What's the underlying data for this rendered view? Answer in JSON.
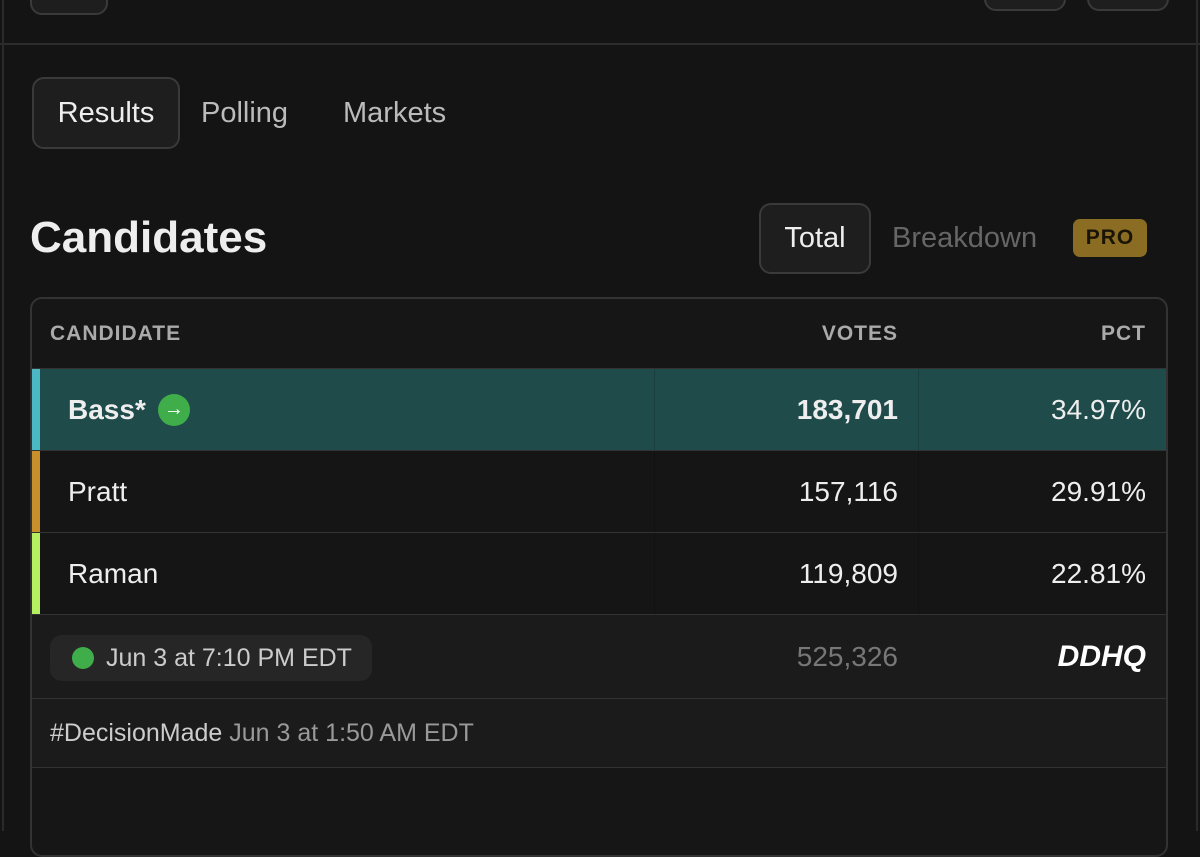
{
  "tabs": [
    "Results",
    "Polling",
    "Markets"
  ],
  "section": {
    "title": "Candidates",
    "toggle": [
      "Total",
      "Breakdown"
    ],
    "badge": "PRO"
  },
  "table": {
    "headers": [
      "CANDIDATE",
      "VOTES",
      "PCT"
    ],
    "rows": [
      [
        "Bass*",
        "183,701",
        "34.97%"
      ],
      [
        "Pratt",
        "157,116",
        "29.91%"
      ],
      [
        "Raman",
        "119,809",
        "22.81%"
      ]
    ],
    "footer": {
      "updated": "Jun 3 at 7:10 PM EDT",
      "total": "525,326",
      "source": "DDHQ"
    },
    "decision": {
      "tag": "#DecisionMade",
      "time": "Jun 3 at 1:50 AM EDT"
    }
  }
}
